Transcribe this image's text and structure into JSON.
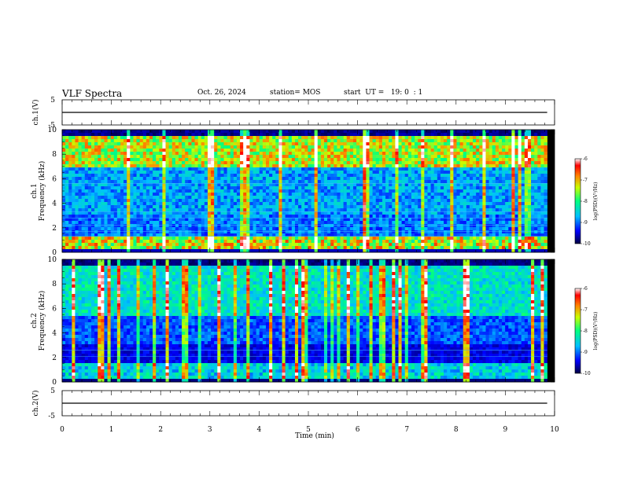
{
  "header": {
    "title": "VLF Spectra",
    "date": "Oct. 26, 2024",
    "station": "station= MOS",
    "start": "start  UT =   19: 0  : 1"
  },
  "chart_data": [
    {
      "panel": "waveform-ch1",
      "type": "line",
      "ylabel": "ch.1(V)",
      "ylim": [
        -5,
        5
      ],
      "yticks": [
        "5",
        "-5"
      ],
      "level": 0,
      "xlim": [
        0,
        10
      ]
    },
    {
      "panel": "spectrogram-ch1",
      "type": "heatmap",
      "ylabel": "ch.1\nFrequency (kHz)",
      "ylim": [
        0,
        10
      ],
      "yticks": [
        "0",
        "2",
        "4",
        "6",
        "8",
        "10"
      ],
      "xlim": [
        0,
        10
      ],
      "colorbar": {
        "label": "log(PSD)(V²/Hz)",
        "range": [
          -10,
          -6
        ],
        "ticks": [
          "-6",
          "-7",
          "-8",
          "-9",
          "-10"
        ]
      }
    },
    {
      "panel": "spectrogram-ch2",
      "type": "heatmap",
      "ylabel": "ch.2\nFrequency (kHz)",
      "ylim": [
        0,
        10
      ],
      "yticks": [
        "0",
        "2",
        "4",
        "6",
        "8",
        "10"
      ],
      "xlim": [
        0,
        10
      ],
      "colorbar": {
        "label": "log(PSD)(V²/Hz)",
        "range": [
          -10,
          -6
        ],
        "ticks": [
          "-6",
          "-7",
          "-8",
          "-9",
          "-10"
        ]
      }
    },
    {
      "panel": "waveform-ch2",
      "type": "line",
      "ylabel": "ch.2(V)",
      "ylim": [
        -5,
        5
      ],
      "yticks": [
        "5",
        "-5"
      ],
      "level": 0,
      "xlim": [
        0,
        10
      ]
    }
  ],
  "xaxis": {
    "label": "Time (min)",
    "ticks": [
      "0",
      "1",
      "2",
      "3",
      "4",
      "5",
      "6",
      "7",
      "8",
      "9",
      "10"
    ],
    "range": [
      0,
      10
    ],
    "data_end": 9.85
  },
  "colors": {
    "background": "#000000",
    "ch1_mid": "#1a3fd0",
    "ch2_mid": "#0c1a8c"
  }
}
